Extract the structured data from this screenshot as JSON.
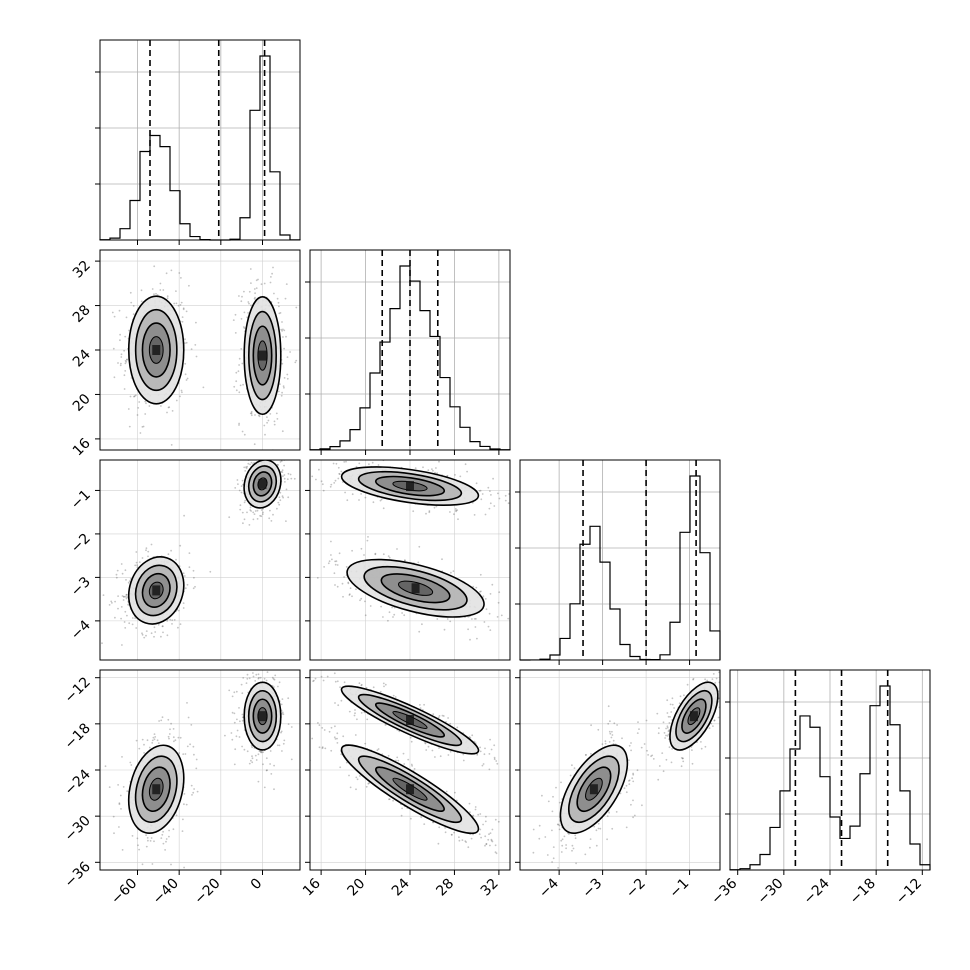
{
  "chart_data": {
    "type": "corner",
    "grid": true,
    "parameters": [
      {
        "range": [
          -78,
          18
        ],
        "ticks": [
          -60,
          -40,
          -20,
          0
        ],
        "tick_labels": [
          "−60",
          "−40",
          "−20",
          "0"
        ],
        "quantiles": [
          -54,
          -21,
          1
        ],
        "modes": [
          -51,
          0
        ],
        "sigma": [
          7,
          4
        ]
      },
      {
        "range": [
          15,
          33
        ],
        "ticks": [
          16,
          20,
          24,
          28,
          32
        ],
        "tick_labels": [
          "16",
          "20",
          "24",
          "28",
          "32"
        ],
        "quantiles": [
          21.5,
          24,
          26.5
        ],
        "modes": [
          24
        ],
        "sigma": [
          2.4
        ]
      },
      {
        "range": [
          -4.9,
          -0.3
        ],
        "ticks": [
          -4,
          -3,
          -2,
          -1
        ],
        "tick_labels": [
          "−4",
          "−3",
          "−2",
          "−1"
        ],
        "quantiles": [
          -3.45,
          -2,
          -0.85
        ],
        "modes": [
          -3.2,
          -0.9
        ],
        "sigma": [
          0.35,
          0.25
        ]
      },
      {
        "range": [
          -37,
          -11
        ],
        "ticks": [
          -36,
          -30,
          -24,
          -18,
          -12
        ],
        "tick_labels": [
          "−36",
          "−30",
          "−24",
          "−18",
          "−12"
        ],
        "quantiles": [
          -28.5,
          -22.5,
          -16.5
        ],
        "modes": [
          -27,
          -17
        ],
        "sigma": [
          2.6,
          2.0
        ]
      }
    ],
    "y_tick_labels": {
      "1": [
        "16",
        "20",
        "24",
        "28",
        "32"
      ],
      "2": [
        "−4",
        "−3",
        "−2",
        "−1"
      ],
      "3": [
        "−36",
        "−30",
        "−24",
        "−18",
        "−12"
      ]
    },
    "clusters": {
      "1-0": [
        {
          "mean": [
            -51,
            24
          ],
          "sd": [
            6,
            2.2
          ],
          "rho": 0
        },
        {
          "mean": [
            0,
            23.5
          ],
          "sd": [
            4,
            2.4
          ],
          "rho": 0
        }
      ],
      "2-0": [
        {
          "mean": [
            -51,
            -3.3
          ],
          "sd": [
            6,
            0.35
          ],
          "rho": 0.15
        },
        {
          "mean": [
            0,
            -0.85
          ],
          "sd": [
            4,
            0.25
          ],
          "rho": 0.15
        }
      ],
      "2-1": [
        {
          "mean": [
            24.5,
            -3.25
          ],
          "sd": [
            2.8,
            0.3
          ],
          "rho": -0.55
        },
        {
          "mean": [
            24,
            -0.9
          ],
          "sd": [
            2.8,
            0.2
          ],
          "rho": -0.5
        }
      ],
      "3-0": [
        {
          "mean": [
            -51,
            -26.5
          ],
          "sd": [
            6,
            2.6
          ],
          "rho": 0.25
        },
        {
          "mean": [
            0,
            -17
          ],
          "sd": [
            4,
            2.0
          ],
          "rho": 0
        }
      ],
      "3-1": [
        {
          "mean": [
            24,
            -26.5
          ],
          "sd": [
            2.8,
            2.6
          ],
          "rho": -0.9
        },
        {
          "mean": [
            24,
            -17.5
          ],
          "sd": [
            2.8,
            2.0
          ],
          "rho": -0.9
        }
      ],
      "3-2": [
        {
          "mean": [
            -3.2,
            -26.5
          ],
          "sd": [
            0.35,
            2.6
          ],
          "rho": 0.6
        },
        {
          "mean": [
            -0.9,
            -17
          ],
          "sd": [
            0.25,
            2.0
          ],
          "rho": 0.6
        }
      ]
    },
    "contour_levels_sigma": [
      0.5,
      1.0,
      1.5,
      2.0
    ]
  }
}
